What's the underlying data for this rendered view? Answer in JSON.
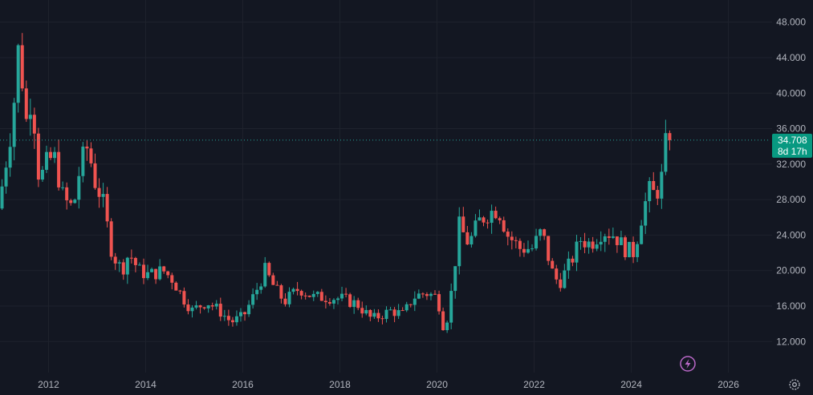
{
  "chart_data": {
    "type": "candlestick",
    "x_ticks": [
      "2012",
      "2014",
      "2016",
      "2018",
      "2020",
      "2022",
      "2024",
      "2026"
    ],
    "y_ticks": [
      "12.000",
      "16.000",
      "20.000",
      "24.000",
      "28.000",
      "32.000",
      "36.000",
      "40.000",
      "44.000",
      "48.000"
    ],
    "ylim": [
      8.5,
      50.5
    ],
    "xlim": [
      2011.0,
      2026.9
    ],
    "last_price": "34.708",
    "countdown": "8d 17h",
    "colors": {
      "up": "#26a69a",
      "down": "#ef5350",
      "background": "#131722",
      "grid": "#1e222d",
      "tag": "#089981",
      "flash": "#ba68c8"
    },
    "icons": {
      "flash": "flash-icon",
      "settings": "gear-icon"
    },
    "anchors": [
      [
        2011.0,
        27.0
      ],
      [
        2011.1,
        30.0
      ],
      [
        2011.3,
        37.0
      ],
      [
        2011.45,
        47.0
      ],
      [
        2011.55,
        36.0
      ],
      [
        2011.7,
        40.0
      ],
      [
        2011.85,
        30.0
      ],
      [
        2012.0,
        32.0
      ],
      [
        2012.15,
        33.0
      ],
      [
        2012.35,
        28.0
      ],
      [
        2012.55,
        27.0
      ],
      [
        2012.7,
        32.0
      ],
      [
        2012.85,
        34.0
      ],
      [
        2013.0,
        30.0
      ],
      [
        2013.15,
        28.0
      ],
      [
        2013.35,
        22.0
      ],
      [
        2013.55,
        20.0
      ],
      [
        2013.7,
        22.0
      ],
      [
        2013.9,
        20.0
      ],
      [
        2014.1,
        19.5
      ],
      [
        2014.4,
        20.0
      ],
      [
        2014.6,
        19.0
      ],
      [
        2014.8,
        17.0
      ],
      [
        2015.0,
        15.5
      ],
      [
        2015.3,
        16.5
      ],
      [
        2015.55,
        15.5
      ],
      [
        2015.8,
        14.2
      ],
      [
        2016.05,
        14.8
      ],
      [
        2016.3,
        17.5
      ],
      [
        2016.5,
        20.0
      ],
      [
        2016.7,
        18.0
      ],
      [
        2016.9,
        16.5
      ],
      [
        2017.2,
        18.0
      ],
      [
        2017.5,
        17.0
      ],
      [
        2017.8,
        17.0
      ],
      [
        2018.1,
        16.8
      ],
      [
        2018.4,
        16.2
      ],
      [
        2018.7,
        14.5
      ],
      [
        2018.9,
        15.0
      ],
      [
        2019.1,
        15.5
      ],
      [
        2019.35,
        15.0
      ],
      [
        2019.55,
        17.0
      ],
      [
        2019.8,
        17.5
      ],
      [
        2020.05,
        17.0
      ],
      [
        2020.2,
        13.0
      ],
      [
        2020.35,
        18.0
      ],
      [
        2020.5,
        25.0
      ],
      [
        2020.7,
        23.0
      ],
      [
        2020.9,
        25.5
      ],
      [
        2021.1,
        26.5
      ],
      [
        2021.3,
        27.0
      ],
      [
        2021.5,
        24.0
      ],
      [
        2021.75,
        22.5
      ],
      [
        2022.0,
        22.5
      ],
      [
        2022.2,
        24.5
      ],
      [
        2022.4,
        20.0
      ],
      [
        2022.55,
        18.5
      ],
      [
        2022.8,
        21.0
      ],
      [
        2023.0,
        23.5
      ],
      [
        2023.2,
        23.0
      ],
      [
        2023.45,
        24.5
      ],
      [
        2023.7,
        24.0
      ],
      [
        2023.9,
        22.5
      ],
      [
        2024.1,
        22.0
      ],
      [
        2024.25,
        26.0
      ],
      [
        2024.4,
        29.0
      ],
      [
        2024.55,
        28.5
      ],
      [
        2024.7,
        31.0
      ],
      [
        2024.76,
        34.708
      ]
    ]
  }
}
